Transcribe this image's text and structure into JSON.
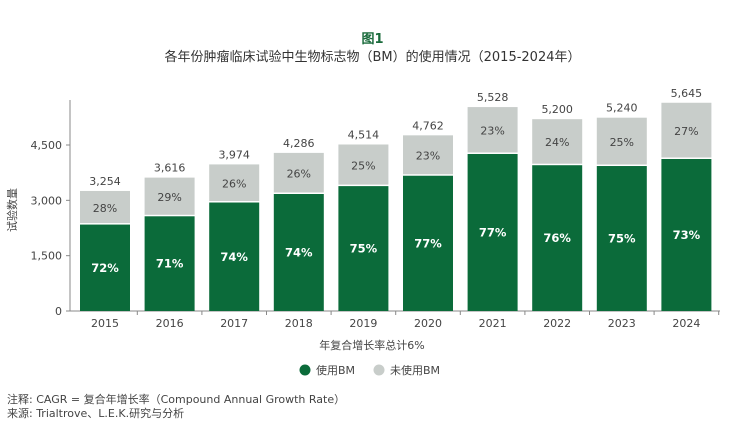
{
  "figure_label": "图1",
  "chart_data": {
    "type": "bar",
    "stacked": true,
    "title": "各年份肿瘤临床试验中生物标志物（BM）的使用情况（2015-2024年）",
    "ylabel": "试验数量",
    "xlabel": "年复合增长率总计6%",
    "ylim": [
      0,
      5800
    ],
    "yticks": [
      0,
      1500,
      3000,
      4500
    ],
    "ytick_labels": [
      "0",
      "1,500",
      "3,000",
      "4,500"
    ],
    "grid": false,
    "legend_position": "bottom",
    "categories": [
      "2015",
      "2016",
      "2017",
      "2018",
      "2019",
      "2020",
      "2021",
      "2022",
      "2023",
      "2024"
    ],
    "totals": [
      3254,
      3616,
      3974,
      4286,
      4514,
      4762,
      5528,
      5200,
      5240,
      5645
    ],
    "total_labels": [
      "3,254",
      "3,616",
      "3,974",
      "4,286",
      "4,514",
      "4,762",
      "5,528",
      "5,200",
      "5,240",
      "5,645"
    ],
    "series": [
      {
        "name": "使用BM",
        "color": "#0b6b3a",
        "percent_labels": [
          "72%",
          "71%",
          "74%",
          "74%",
          "75%",
          "77%",
          "77%",
          "76%",
          "75%",
          "73%"
        ],
        "percents": [
          72,
          71,
          74,
          74,
          75,
          77,
          77,
          76,
          75,
          73
        ]
      },
      {
        "name": "未使用BM",
        "color": "#c8cdca",
        "percent_labels": [
          "28%",
          "29%",
          "26%",
          "26%",
          "25%",
          "23%",
          "23%",
          "24%",
          "25%",
          "27%"
        ],
        "percents": [
          28,
          29,
          26,
          26,
          25,
          23,
          23,
          24,
          25,
          27
        ]
      }
    ]
  },
  "notes": {
    "note": "注释: CAGR = 复合年增长率（Compound Annual Growth Rate）",
    "source": "来源: Trialtrove、L.E.K.研究与分析"
  }
}
